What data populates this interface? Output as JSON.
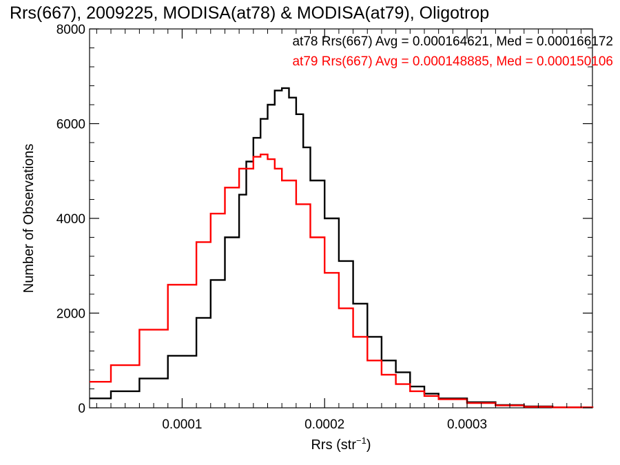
{
  "chart_data": {
    "type": "line",
    "title": "Rrs(667), 2009225, MODISA(at78) & MODISA(at79), Oligotrop",
    "xlabel": "Rrs (str",
    "xlabel_sup": "−1",
    "xlabel_close": ")",
    "ylabel": "Number of Observations",
    "xlim": [
      3.5e-05,
      0.000388
    ],
    "ylim": [
      0,
      8000
    ],
    "xticks": [
      0.0001,
      0.0002,
      0.0003
    ],
    "xtick_labels": [
      "0.0001",
      "0.0002",
      "0.0003"
    ],
    "yticks": [
      0,
      2000,
      4000,
      6000,
      8000
    ],
    "ytick_labels": [
      "0",
      "2000",
      "4000",
      "6000",
      "8000"
    ],
    "grid": false,
    "legend_position": "top-right",
    "series": [
      {
        "legend": "at78 Rrs(667) Avg = 0.000164621, Med = 0.000166172",
        "color": "#000000",
        "x": [
          3.5e-05,
          5e-05,
          7e-05,
          9e-05,
          0.00011,
          0.00012,
          0.00013,
          0.00014,
          0.000145,
          0.00015,
          0.000155,
          0.00016,
          0.000165,
          0.00017,
          0.000175,
          0.00018,
          0.000185,
          0.00019,
          0.0002,
          0.00021,
          0.00022,
          0.00023,
          0.00024,
          0.00025,
          0.00026,
          0.00027,
          0.00028,
          0.0003,
          0.00032,
          0.00034,
          0.00036,
          0.000388
        ],
        "y": [
          200,
          350,
          620,
          1100,
          1900,
          2700,
          3600,
          4500,
          5200,
          5700,
          6100,
          6400,
          6700,
          6750,
          6550,
          6200,
          5500,
          4800,
          4000,
          3100,
          2200,
          1500,
          1000,
          750,
          450,
          300,
          200,
          120,
          60,
          30,
          10,
          0
        ]
      },
      {
        "legend": "at79 Rrs(667) Avg = 0.000148885, Med = 0.000150106",
        "color": "#ff0000",
        "x": [
          3.5e-05,
          5e-05,
          7e-05,
          9e-05,
          0.00011,
          0.00012,
          0.00013,
          0.00014,
          0.00015,
          0.000155,
          0.00016,
          0.000165,
          0.00017,
          0.00018,
          0.00019,
          0.0002,
          0.00021,
          0.00022,
          0.00023,
          0.00024,
          0.00025,
          0.00026,
          0.00027,
          0.00028,
          0.0003,
          0.00032,
          0.00034,
          0.00036,
          0.000388
        ],
        "y": [
          550,
          900,
          1650,
          2600,
          3500,
          4100,
          4650,
          5050,
          5300,
          5350,
          5250,
          5050,
          4800,
          4300,
          3600,
          2850,
          2100,
          1500,
          1000,
          700,
          500,
          350,
          250,
          180,
          100,
          50,
          20,
          10,
          0
        ]
      }
    ]
  }
}
